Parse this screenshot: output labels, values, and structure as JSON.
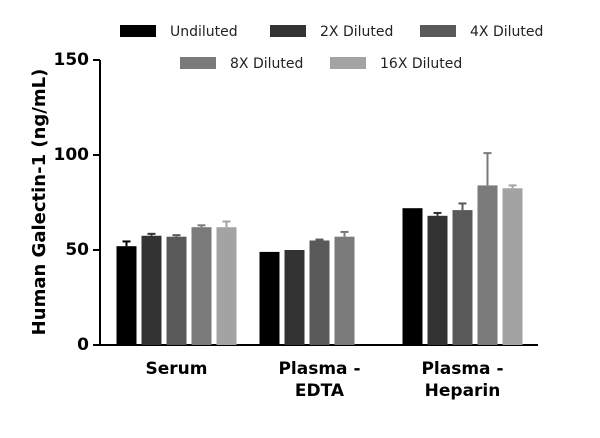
{
  "chart_data": {
    "type": "bar",
    "y_label": "Human Galectin-1 (ng/mL)",
    "categories": [
      "Serum",
      "Plasma -\nEDTA",
      "Plasma -\nHeparin"
    ],
    "series": [
      {
        "name": "Undiluted",
        "color": "#000000",
        "values": [
          52,
          49,
          72
        ],
        "errors": [
          2.5,
          0,
          0
        ]
      },
      {
        "name": "2X Diluted",
        "color": "#333333",
        "values": [
          57.5,
          50,
          68
        ],
        "errors": [
          1,
          0,
          1.5
        ]
      },
      {
        "name": "4X Diluted",
        "color": "#595959",
        "values": [
          57,
          55,
          71
        ],
        "errors": [
          0.8,
          0.5,
          3.5
        ]
      },
      {
        "name": "8X Diluted",
        "color": "#7a7a7a",
        "values": [
          62,
          57,
          84
        ],
        "errors": [
          1,
          2.5,
          17
        ]
      },
      {
        "name": "16X Diluted",
        "color": "#a3a3a3",
        "values": [
          62,
          null,
          82.5
        ],
        "errors": [
          3,
          null,
          1.5
        ]
      }
    ],
    "ylim": [
      0,
      150
    ],
    "yticks": [
      0,
      50,
      100,
      150
    ]
  }
}
